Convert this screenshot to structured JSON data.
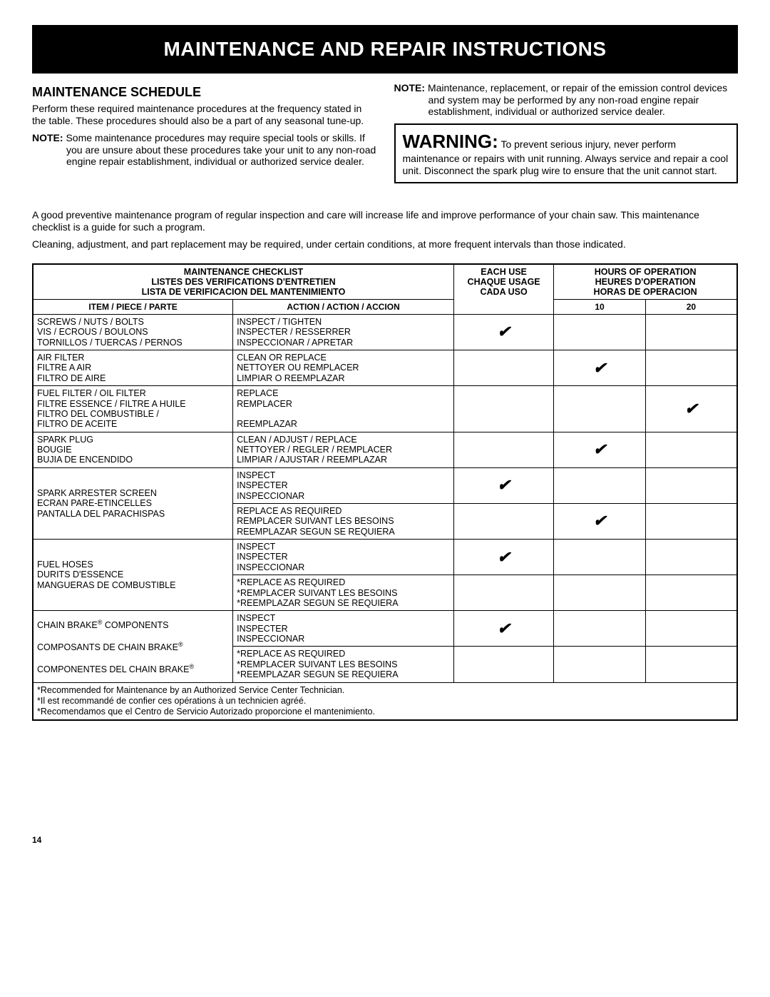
{
  "banner": "MAINTENANCE AND REPAIR INSTRUCTIONS",
  "subhead": "MAINTENANCE SCHEDULE",
  "leftPara1": "Perform these required maintenance procedures at the frequency stated in the table. These procedures should also be a part of any seasonal tune-up.",
  "leftNoteLabel": "NOTE:",
  "leftNoteText": " Some maintenance procedures may require special tools or skills. If you are unsure about these procedures take your unit to any non-road engine repair establishment, individual or authorized service dealer.",
  "rightNoteLabel": "NOTE:",
  "rightNoteText": " Maintenance, replacement, or repair of the emission control devices and system may be performed by any non-road engine repair establishment, individual or authorized service dealer.",
  "warningLabel": "WARNING:",
  "warningText": " To prevent serious injury, never perform maintenance or repairs with unit running. Always service and repair a cool unit. Disconnect the spark plug wire to ensure that the unit cannot start.",
  "midP1": "A good preventive maintenance program of regular inspection and care will increase life and improve performance of your chain saw. This maintenance checklist is a guide for such a program.",
  "midP2": "Cleaning, adjustment, and part replacement may be required, under certain conditions, at more frequent intervals than those indicated.",
  "table": {
    "mainHeader": {
      "checklistEn": "MAINTENANCE CHECKLIST",
      "checklistFr": "LISTES DES VERIFICATIONS D'ENTRETIEN",
      "checklistEs": "LISTA DE VERIFICACION DEL MANTENIMIENTO",
      "eachUseEn": "EACH USE",
      "eachUseFr": "CHAQUE USAGE",
      "eachUseEs": "CADA USO",
      "hoursEn": "HOURS OF OPERATION",
      "hoursFr": "HEURES D'OPERATION",
      "hoursEs": "HORAS DE OPERACION"
    },
    "subHeader": {
      "item": "ITEM / PIECE / PARTE",
      "action": "ACTION / ACTION / ACCION",
      "h10": "10",
      "h20": "20"
    },
    "rows": [
      {
        "item": "SCREWS / NUTS / BOLTS\nVIS / ECROUS / BOULONS\nTORNILLOS / TUERCAS / PERNOS",
        "action": "INSPECT / TIGHTEN\nINSPECTER / RESSERRER\nINSPECCIONAR / APRETAR",
        "each": true,
        "h10": false,
        "h20": false,
        "rowspanItem": 1
      },
      {
        "item": "AIR FILTER\nFILTRE A AIR\nFILTRO DE AIRE",
        "action": "CLEAN OR REPLACE\nNETTOYER OU REMPLACER\nLIMPIAR O REEMPLAZAR",
        "each": false,
        "h10": true,
        "h20": false,
        "rowspanItem": 1
      },
      {
        "item": "FUEL FILTER / OIL FILTER\nFILTRE ESSENCE / FILTRE A HUILE\nFILTRO DEL COMBUSTIBLE /\nFILTRO DE ACEITE",
        "action": "REPLACE\nREMPLACER\n\nREEMPLAZAR",
        "each": false,
        "h10": false,
        "h20": true,
        "rowspanItem": 1
      },
      {
        "item": "SPARK PLUG\nBOUGIE\nBUJIA DE ENCENDIDO",
        "action": "CLEAN / ADJUST / REPLACE\nNETTOYER / REGLER / REMPLACER\nLIMPIAR / AJUSTAR / REEMPLAZAR",
        "each": false,
        "h10": true,
        "h20": false,
        "rowspanItem": 1
      }
    ],
    "multiRows": [
      {
        "item": "SPARK ARRESTER SCREEN\nECRAN PARE-ETINCELLES\nPANTALLA DEL PARACHISPAS",
        "actions": [
          {
            "text": "INSPECT\nINSPECTER\nINSPECCIONAR",
            "each": true,
            "h10": false,
            "h20": false
          },
          {
            "text": "REPLACE AS REQUIRED\nREMPLACER SUIVANT LES BESOINS\nREEMPLAZAR SEGUN SE REQUIERA",
            "each": false,
            "h10": true,
            "h20": false
          }
        ]
      },
      {
        "item": "FUEL HOSES\nDURITS D'ESSENCE\nMANGUERAS DE COMBUSTIBLE",
        "actions": [
          {
            "text": "INSPECT\nINSPECTER\nINSPECCIONAR",
            "each": true,
            "h10": false,
            "h20": false
          },
          {
            "text": "*REPLACE AS REQUIRED\n*REMPLACER SUIVANT LES BESOINS\n*REEMPLAZAR SEGUN SE REQUIERA",
            "each": false,
            "h10": false,
            "h20": false
          }
        ]
      },
      {
        "item": "CHAIN BRAKE® COMPONENTS\n\nCOMPOSANTS DE CHAIN BRAKE®\n\nCOMPONENTES DEL CHAIN BRAKE®",
        "actions": [
          {
            "text": "INSPECT\nINSPECTER\nINSPECCIONAR",
            "each": true,
            "h10": false,
            "h20": false
          },
          {
            "text": "*REPLACE AS REQUIRED\n*REMPLACER SUIVANT LES BESOINS\n*REEMPLAZAR SEGUN SE REQUIERA",
            "each": false,
            "h10": false,
            "h20": false
          }
        ]
      }
    ],
    "footnotes": [
      "*Recommended for Maintenance by an Authorized Service Center Technician.",
      "*Il est recommandé de confier ces opérations à un technicien agréé.",
      "*Recomendamos que el Centro de Servicio Autorizado proporcione el mantenimiento."
    ]
  },
  "pageNumber": "14",
  "checkmark": "✔"
}
